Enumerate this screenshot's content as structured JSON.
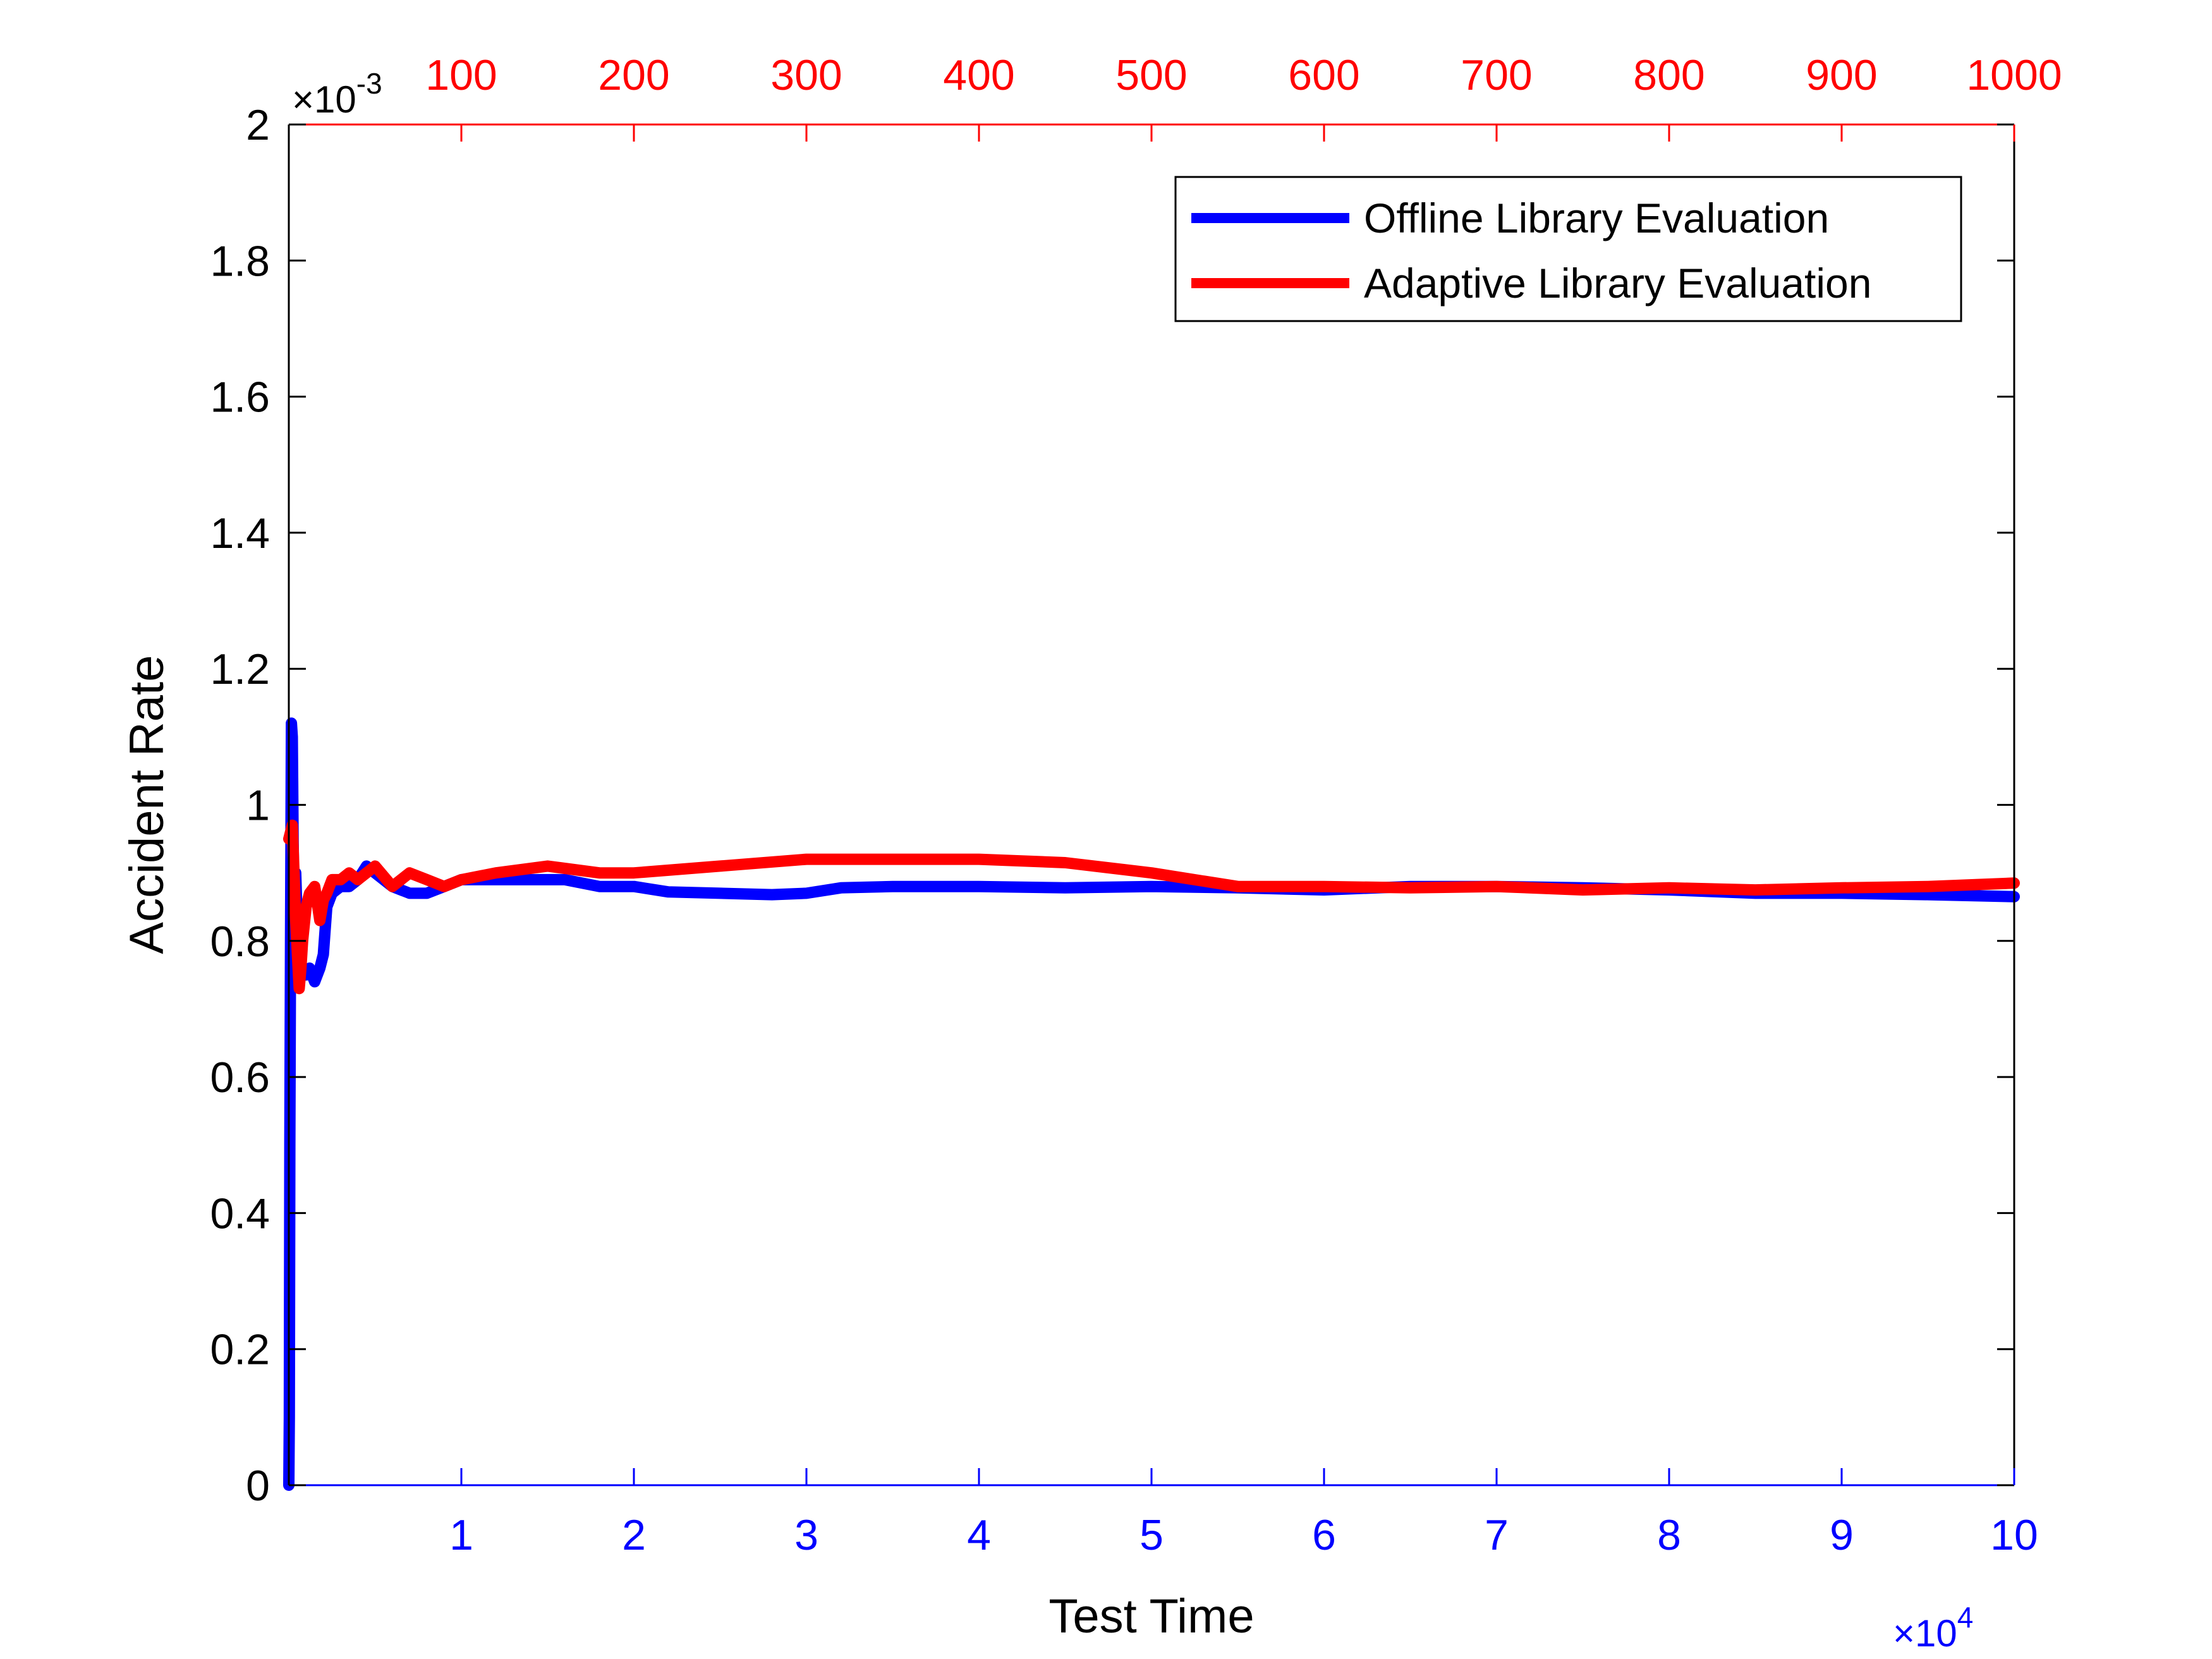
{
  "chart_data": {
    "type": "line",
    "xlabel": "Test Time",
    "ylabel": "Accident Rate",
    "grid": false,
    "legend_position": "top-right",
    "bottom_axis": {
      "range": [
        0,
        100000
      ],
      "ticks": [
        10000,
        20000,
        30000,
        40000,
        50000,
        60000,
        70000,
        80000,
        90000,
        100000
      ],
      "tick_labels": [
        "1",
        "2",
        "3",
        "4",
        "5",
        "6",
        "7",
        "8",
        "9",
        "10"
      ],
      "multiplier_base": "×10",
      "multiplier_exp": "4",
      "color": "#0000ff"
    },
    "top_axis": {
      "range": [
        0,
        1000
      ],
      "ticks": [
        100,
        200,
        300,
        400,
        500,
        600,
        700,
        800,
        900,
        1000
      ],
      "tick_labels": [
        "100",
        "200",
        "300",
        "400",
        "500",
        "600",
        "700",
        "800",
        "900",
        "1000"
      ],
      "color": "#ff0000"
    },
    "left_axis": {
      "range": [
        0,
        0.002
      ],
      "ticks": [
        0,
        0.0002,
        0.0004,
        0.0006,
        0.0008,
        0.001,
        0.0012,
        0.0014,
        0.0016,
        0.0018,
        0.002
      ],
      "tick_labels": [
        "0",
        "0.2",
        "0.4",
        "0.6",
        "0.8",
        "1",
        "1.2",
        "1.4",
        "1.6",
        "1.8",
        "2"
      ],
      "multiplier_base": "×10",
      "multiplier_exp": "-3",
      "color": "#000000"
    },
    "series": [
      {
        "name": "Offline Library Evaluation",
        "color": "#0000ff",
        "axis": "bottom",
        "x": [
          0,
          30,
          60,
          100,
          150,
          200,
          250,
          300,
          400,
          500,
          600,
          800,
          1000,
          1200,
          1500,
          1800,
          2000,
          2200,
          2500,
          3000,
          3500,
          4000,
          4500,
          5000,
          5500,
          6000,
          7000,
          8000,
          9000,
          10000,
          12000,
          14000,
          16000,
          18000,
          20000,
          22000,
          25000,
          28000,
          30000,
          32000,
          35000,
          40000,
          45000,
          50000,
          55000,
          60000,
          65000,
          70000,
          75000,
          80000,
          85000,
          90000,
          95000,
          100000
        ],
        "y": [
          0,
          0.0001,
          0.0005,
          0.0008,
          0.00112,
          0.0011,
          0.00095,
          0.00085,
          0.0009,
          0.00082,
          0.00078,
          0.00075,
          0.00075,
          0.00076,
          0.00074,
          0.00076,
          0.00078,
          0.00085,
          0.00087,
          0.00088,
          0.00088,
          0.00089,
          0.00091,
          0.0009,
          0.00089,
          0.00088,
          0.00087,
          0.00087,
          0.00088,
          0.00089,
          0.00089,
          0.00089,
          0.00089,
          0.00088,
          0.00088,
          0.000872,
          0.00087,
          0.000868,
          0.00087,
          0.000878,
          0.00088,
          0.00088,
          0.000878,
          0.00088,
          0.000878,
          0.000875,
          0.00088,
          0.00088,
          0.000878,
          0.000875,
          0.00087,
          0.00087,
          0.000868,
          0.000865
        ]
      },
      {
        "name": "Adaptive Library Evaluation",
        "color": "#ff0000",
        "axis": "top",
        "x": [
          0,
          2,
          3,
          4,
          5,
          6,
          7,
          8,
          10,
          12,
          15,
          18,
          20,
          22,
          25,
          30,
          35,
          40,
          50,
          60,
          70,
          80,
          90,
          100,
          120,
          150,
          180,
          200,
          250,
          300,
          350,
          400,
          450,
          500,
          550,
          600,
          650,
          700,
          750,
          800,
          850,
          900,
          950,
          1000
        ],
        "y": [
          0.00095,
          0.00097,
          0.0009,
          0.00083,
          0.00078,
          0.00073,
          0.00076,
          0.0008,
          0.00085,
          0.00087,
          0.00088,
          0.00083,
          0.00086,
          0.00087,
          0.00089,
          0.00089,
          0.0009,
          0.00089,
          0.00091,
          0.00088,
          0.0009,
          0.00089,
          0.00088,
          0.00089,
          0.0009,
          0.00091,
          0.0009,
          0.0009,
          0.00091,
          0.00092,
          0.00092,
          0.00092,
          0.000915,
          0.0009,
          0.00088,
          0.00088,
          0.000878,
          0.00088,
          0.000875,
          0.000878,
          0.000875,
          0.000878,
          0.00088,
          0.000885
        ]
      }
    ]
  }
}
